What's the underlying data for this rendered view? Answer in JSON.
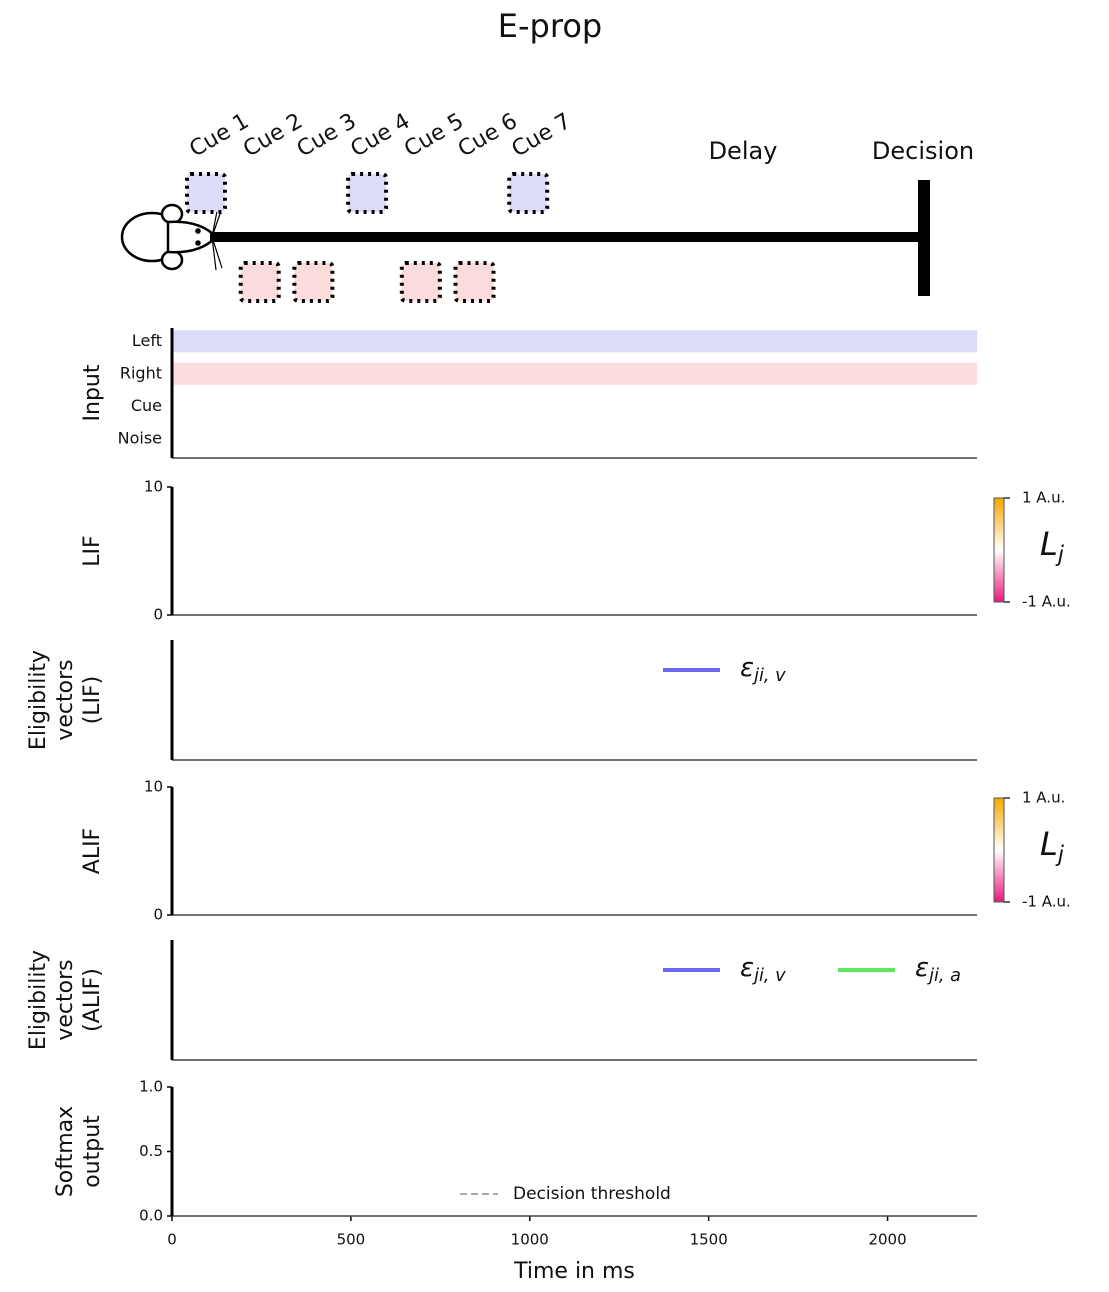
{
  "title": "E-prop",
  "diagram": {
    "cues": [
      {
        "label": "Cue 1",
        "side": "Left"
      },
      {
        "label": "Cue 2",
        "side": "Right"
      },
      {
        "label": "Cue 3",
        "side": "Right"
      },
      {
        "label": "Cue 4",
        "side": "Left"
      },
      {
        "label": "Cue 5",
        "side": "Right"
      },
      {
        "label": "Cue 6",
        "side": "Right"
      },
      {
        "label": "Cue 7",
        "side": "Left"
      }
    ],
    "side_colors": {
      "Left": "#dcdcf9",
      "Right": "#fadcdc"
    },
    "delay": "Delay",
    "decision": "Decision"
  },
  "chart_data": [
    {
      "type": "raster",
      "ylabel": [
        "Input"
      ],
      "categories": [
        "Left",
        "Right",
        "Cue",
        "Noise"
      ],
      "band_colors": [
        "#dcdcf9",
        "#fadcdc",
        null,
        null
      ],
      "xlim": [
        0,
        2250
      ]
    },
    {
      "type": "line",
      "ylabel": [
        "LIF"
      ],
      "xlim": [
        0,
        2250
      ],
      "ylim": [
        0,
        10
      ],
      "yticks": [
        0,
        10
      ],
      "colorbar": {
        "clim": [
          -1,
          1
        ],
        "ticks": [
          {
            "value": 1,
            "label": "1 A.u."
          },
          {
            "value": -1,
            "label": "-1 A.u."
          }
        ],
        "symbol": "L",
        "subscript": "j",
        "colors": [
          "#e8197a",
          "#ffffff",
          "#f5a800"
        ]
      }
    },
    {
      "type": "line",
      "ylabel": [
        "Eligibility",
        "vectors",
        "(LIF)"
      ],
      "xlim": [
        0,
        2250
      ],
      "legend_position": "upper right",
      "legend": [
        {
          "symbol": "ε",
          "subscript": "ji, v",
          "color": "#6a6af5",
          "style": "solid"
        }
      ]
    },
    {
      "type": "line",
      "ylabel": [
        "ALIF"
      ],
      "xlim": [
        0,
        2250
      ],
      "ylim": [
        0,
        10
      ],
      "yticks": [
        0,
        10
      ],
      "colorbar": {
        "clim": [
          -1,
          1
        ],
        "ticks": [
          {
            "value": 1,
            "label": "1 A.u."
          },
          {
            "value": -1,
            "label": "-1 A.u."
          }
        ],
        "symbol": "L",
        "subscript": "j",
        "colors": [
          "#e8197a",
          "#ffffff",
          "#f5a800"
        ]
      }
    },
    {
      "type": "line",
      "ylabel": [
        "Eligibility",
        "vectors",
        "(ALIF)"
      ],
      "xlim": [
        0,
        2250
      ],
      "legend_position": "upper right",
      "legend": [
        {
          "symbol": "ε",
          "subscript": "ji, v",
          "color": "#6a6af5",
          "style": "solid"
        },
        {
          "symbol": "ε",
          "subscript": "ji, a",
          "color": "#5ee85e",
          "style": "solid"
        }
      ]
    },
    {
      "type": "line",
      "ylabel": [
        "Softmax",
        "output"
      ],
      "xlim": [
        0,
        2250
      ],
      "ylim": [
        0,
        1
      ],
      "yticks": [
        {
          "value": 0,
          "label": "0.0"
        },
        0.5,
        {
          "value": 1,
          "label": "1.0"
        }
      ],
      "xticks": [
        0,
        500,
        1000,
        1500,
        2000
      ],
      "xlabel": "Time in ms",
      "legend_position": "lower center",
      "legend": [
        {
          "label": "Decision threshold",
          "color": "#aaaaaa",
          "style": "dashed"
        }
      ]
    }
  ]
}
